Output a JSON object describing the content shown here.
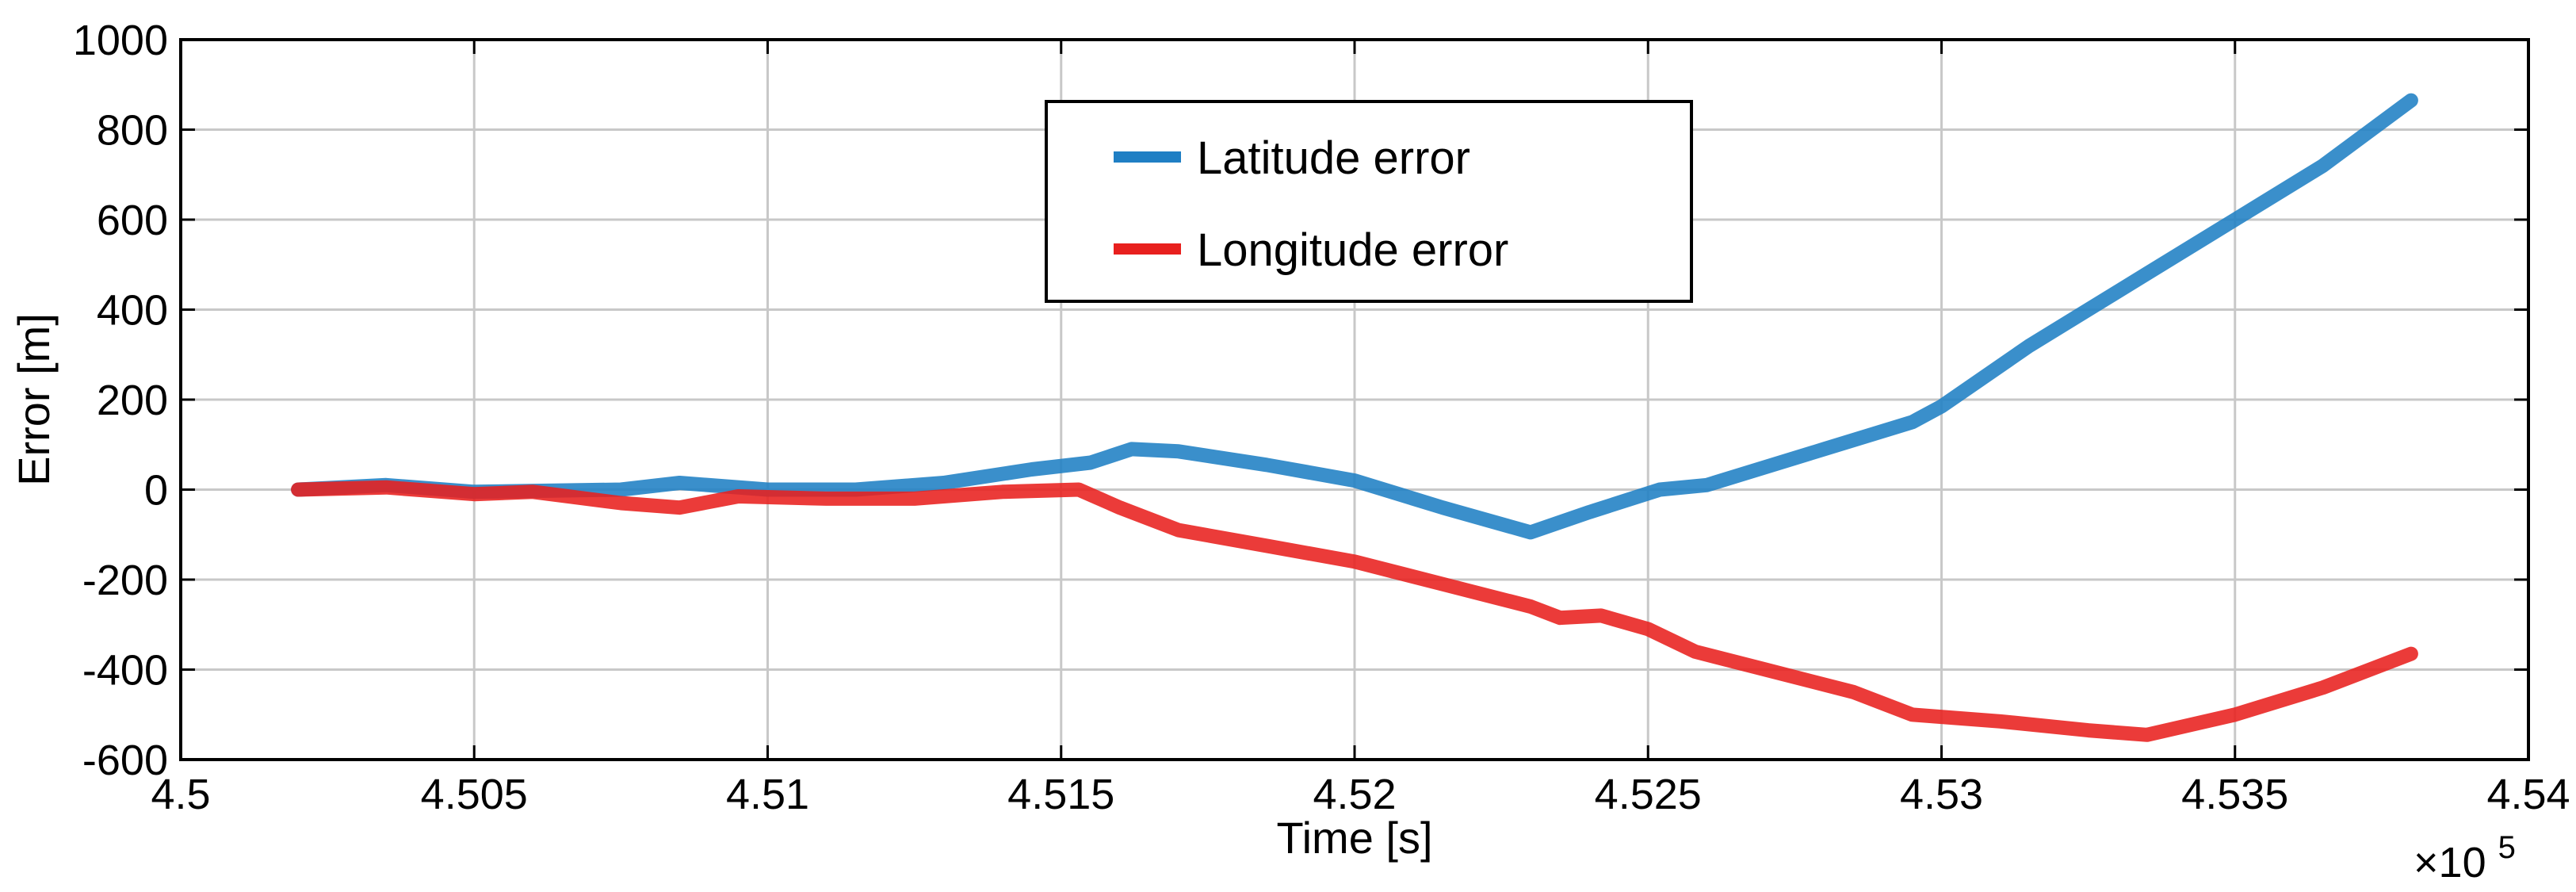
{
  "chart_data": {
    "type": "line",
    "xlabel": "Time [s]",
    "ylabel": "Error [m]",
    "x_multiplier": "×10",
    "x_multiplier_exp": "5",
    "xlim": [
      4.5,
      4.54
    ],
    "ylim": [
      -600,
      1000
    ],
    "xticks": [
      4.5,
      4.505,
      4.51,
      4.515,
      4.52,
      4.525,
      4.53,
      4.535,
      4.54
    ],
    "xtick_labels": [
      "4.5",
      "4.505",
      "4.51",
      "4.515",
      "4.52",
      "4.525",
      "4.53",
      "4.535",
      "4.54"
    ],
    "yticks": [
      -600,
      -400,
      -200,
      0,
      200,
      400,
      600,
      800,
      1000
    ],
    "ytick_labels": [
      "-600",
      "-400",
      "-200",
      "0",
      "200",
      "400",
      "600",
      "800",
      "1000"
    ],
    "grid": true,
    "legend_position": "top-center",
    "series": [
      {
        "name": "Latitude error",
        "color": "#1f7fc4",
        "x": [
          4.502,
          4.5035,
          4.505,
          4.5075,
          4.5085,
          4.51,
          4.5115,
          4.513,
          4.5145,
          4.5155,
          4.5162,
          4.517,
          4.5185,
          4.52,
          4.5215,
          4.523,
          4.524,
          4.5252,
          4.526,
          4.528,
          4.5295,
          4.53,
          4.5315,
          4.5335,
          4.535,
          4.5365,
          4.538
        ],
        "values": [
          0,
          10,
          -5,
          0,
          15,
          0,
          0,
          15,
          45,
          60,
          90,
          85,
          55,
          20,
          -40,
          -95,
          -50,
          0,
          10,
          90,
          150,
          185,
          320,
          480,
          600,
          720,
          865
        ]
      },
      {
        "name": "Longitude error",
        "color": "#e8201e",
        "x": [
          4.502,
          4.5035,
          4.505,
          4.506,
          4.5075,
          4.5085,
          4.5095,
          4.511,
          4.5125,
          4.514,
          4.5153,
          4.516,
          4.517,
          4.5185,
          4.52,
          4.5215,
          4.523,
          4.5235,
          4.5242,
          4.525,
          4.5258,
          4.527,
          4.5285,
          4.5295,
          4.531,
          4.5325,
          4.5335,
          4.535,
          4.5365,
          4.538
        ],
        "values": [
          0,
          5,
          -10,
          -5,
          -30,
          -40,
          -15,
          -20,
          -20,
          -5,
          0,
          -40,
          -90,
          -125,
          -160,
          -210,
          -260,
          -285,
          -280,
          -310,
          -360,
          -400,
          -450,
          -500,
          -515,
          -535,
          -545,
          -500,
          -440,
          -365
        ]
      }
    ]
  }
}
